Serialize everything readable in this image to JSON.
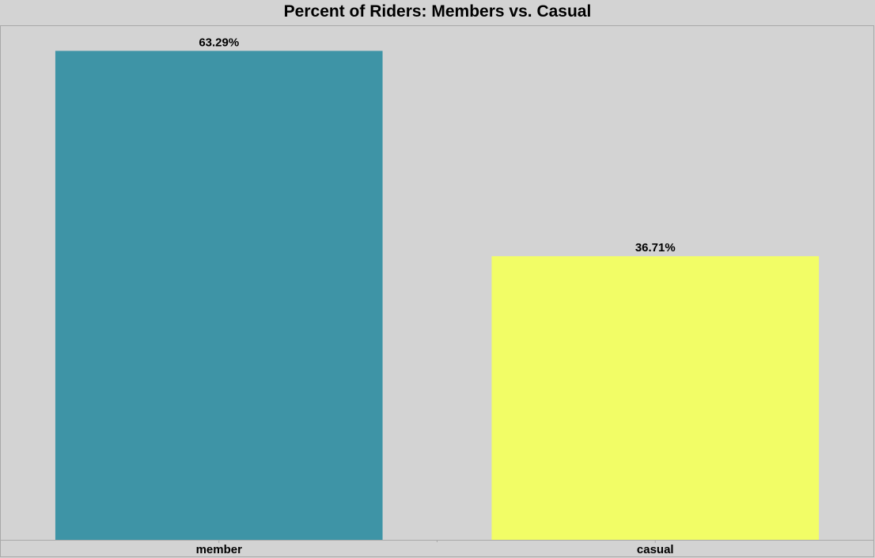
{
  "chart_data": {
    "type": "bar",
    "title": "Percent of Riders: Members vs. Casual",
    "xlabel": "",
    "ylabel": "",
    "categories": [
      "member",
      "casual"
    ],
    "values": [
      63.29,
      36.71
    ],
    "value_labels": [
      "63.29%",
      "36.71%"
    ],
    "colors": [
      "#3e94a6",
      "#f2fd66"
    ],
    "ylim": [
      0,
      66.5
    ],
    "grid": false,
    "legend": "none"
  },
  "colors": {
    "background": "#d3d3d3",
    "frame": "#a8a8a8"
  }
}
